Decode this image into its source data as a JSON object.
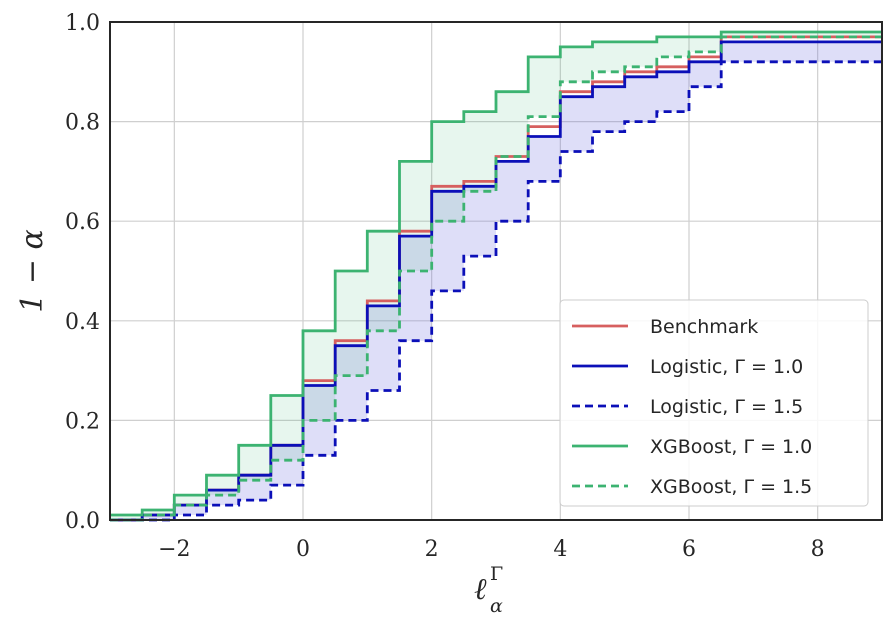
{
  "chart_data": {
    "type": "line",
    "title": "",
    "xlabel": "ℓ",
    "xlabel_sup": "Γ",
    "xlabel_sub": "α",
    "ylabel": "1 − α",
    "xlim": [
      -3.0,
      9.0
    ],
    "ylim": [
      0.0,
      1.0
    ],
    "xticks": [
      -2,
      0,
      2,
      4,
      6,
      8
    ],
    "xtick_labels": [
      "−2",
      "0",
      "2",
      "4",
      "6",
      "8"
    ],
    "yticks": [
      0.0,
      0.2,
      0.4,
      0.6,
      0.8,
      1.0
    ],
    "ytick_labels": [
      "0.0",
      "0.2",
      "0.4",
      "0.6",
      "0.8",
      "1.0"
    ],
    "grid": true,
    "legend_position": "bottom-right",
    "series": [
      {
        "name": "Benchmark",
        "color": "#d65f5f",
        "dash": "solid",
        "x": [
          -3.0,
          -2.5,
          -2.0,
          -1.5,
          -1.0,
          -0.5,
          0.0,
          0.5,
          1.0,
          1.5,
          2.0,
          2.5,
          3.0,
          3.5,
          4.0,
          4.5,
          5.0,
          5.5,
          6.0,
          6.5,
          9.0
        ],
        "y": [
          0.0,
          0.01,
          0.03,
          0.06,
          0.09,
          0.15,
          0.28,
          0.36,
          0.44,
          0.58,
          0.67,
          0.68,
          0.73,
          0.79,
          0.86,
          0.88,
          0.9,
          0.91,
          0.93,
          0.97,
          0.97
        ]
      },
      {
        "name": "Logistic, Γ = 1.0",
        "color": "#0b0fb8",
        "dash": "solid",
        "x": [
          -3.0,
          -2.5,
          -2.0,
          -1.5,
          -1.0,
          -0.5,
          0.0,
          0.5,
          1.0,
          1.5,
          2.0,
          2.5,
          3.0,
          3.5,
          4.0,
          4.5,
          5.0,
          5.5,
          6.0,
          6.5,
          9.0
        ],
        "y": [
          0.0,
          0.01,
          0.03,
          0.06,
          0.09,
          0.15,
          0.27,
          0.35,
          0.43,
          0.57,
          0.66,
          0.67,
          0.72,
          0.77,
          0.85,
          0.87,
          0.89,
          0.9,
          0.92,
          0.96,
          0.96
        ]
      },
      {
        "name": "Logistic, Γ = 1.5",
        "color": "#0b0fb8",
        "dash": "dashed",
        "x": [
          -3.0,
          -2.5,
          -2.0,
          -1.5,
          -1.0,
          -0.5,
          0.0,
          0.5,
          1.0,
          1.5,
          2.0,
          2.5,
          3.0,
          3.5,
          4.0,
          4.5,
          5.0,
          5.5,
          6.0,
          6.5,
          9.0
        ],
        "y": [
          0.0,
          0.0,
          0.01,
          0.03,
          0.04,
          0.07,
          0.13,
          0.2,
          0.26,
          0.36,
          0.46,
          0.53,
          0.6,
          0.68,
          0.74,
          0.78,
          0.8,
          0.82,
          0.87,
          0.92,
          0.92
        ]
      },
      {
        "name": "XGBoost, Γ = 1.0",
        "color": "#3cb371",
        "dash": "solid",
        "x": [
          -3.0,
          -2.5,
          -2.0,
          -1.5,
          -1.0,
          -0.5,
          0.0,
          0.5,
          1.0,
          1.5,
          2.0,
          2.5,
          3.0,
          3.5,
          4.0,
          4.5,
          5.0,
          5.5,
          6.0,
          6.5,
          9.0
        ],
        "y": [
          0.01,
          0.02,
          0.05,
          0.09,
          0.15,
          0.25,
          0.38,
          0.5,
          0.58,
          0.72,
          0.8,
          0.82,
          0.86,
          0.93,
          0.95,
          0.96,
          0.96,
          0.97,
          0.97,
          0.98,
          0.98
        ]
      },
      {
        "name": "XGBoost, Γ = 1.5",
        "color": "#3cb371",
        "dash": "dashed",
        "x": [
          -3.0,
          -2.5,
          -2.0,
          -1.5,
          -1.0,
          -0.5,
          0.0,
          0.5,
          1.0,
          1.5,
          2.0,
          2.5,
          3.0,
          3.5,
          4.0,
          4.5,
          5.0,
          5.5,
          6.0,
          6.5,
          9.0
        ],
        "y": [
          0.0,
          0.01,
          0.03,
          0.05,
          0.08,
          0.12,
          0.2,
          0.29,
          0.38,
          0.5,
          0.6,
          0.66,
          0.73,
          0.81,
          0.88,
          0.9,
          0.91,
          0.93,
          0.94,
          0.97,
          0.97
        ]
      }
    ],
    "bands": [
      {
        "between": [
          "Logistic, Γ = 1.0",
          "Logistic, Γ = 1.5"
        ],
        "color": "#6a6ae0",
        "opacity": 0.22
      },
      {
        "between": [
          "XGBoost, Γ = 1.0",
          "XGBoost, Γ = 1.5"
        ],
        "color": "#3cb371",
        "opacity": 0.12
      }
    ]
  }
}
